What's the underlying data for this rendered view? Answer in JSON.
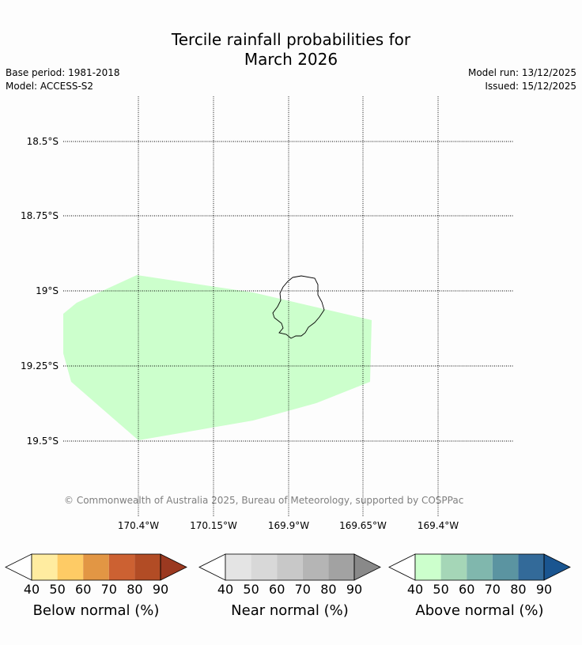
{
  "title": {
    "line1": "Tercile rainfall probabilities for",
    "line2": "March 2026"
  },
  "meta": {
    "base_period": "Base period: 1981-2018",
    "model": "Model: ACCESS-S2",
    "model_run": "Model run: 13/12/2025",
    "issued": "Issued: 15/12/2025"
  },
  "map": {
    "lat_labels": [
      "18.5°S",
      "18.75°S",
      "19°S",
      "19.25°S",
      "19.5°S"
    ],
    "lon_labels": [
      "170.4°W",
      "170.15°W",
      "169.9°W",
      "169.65°W",
      "169.4°W"
    ],
    "credit": "© Commonwealth of Australia 2025, Bureau of Meteorology, supported by COSPPac",
    "island_outline_color": "#000000",
    "shaded_region": {
      "category": "Above normal",
      "probability_band": "40-50",
      "color": "#ccffcc"
    }
  },
  "legends": [
    {
      "title": "Below normal (%)",
      "ticks": [
        "40",
        "50",
        "60",
        "70",
        "80",
        "90"
      ],
      "under_color": "#ffffff",
      "colors": [
        "#ffeca0",
        "#fecb65",
        "#e29644",
        "#cc6132",
        "#b24c25"
      ],
      "over_color": "#9b3920"
    },
    {
      "title": "Near normal (%)",
      "ticks": [
        "40",
        "50",
        "60",
        "70",
        "80",
        "90"
      ],
      "under_color": "#ffffff",
      "colors": [
        "#e4e4e4",
        "#d8d8d8",
        "#c8c8c8",
        "#b5b5b5",
        "#a2a2a2"
      ],
      "over_color": "#898989"
    },
    {
      "title": "Above normal (%)",
      "ticks": [
        "40",
        "50",
        "60",
        "70",
        "80",
        "90"
      ],
      "under_color": "#ffffff",
      "colors": [
        "#ccffcc",
        "#a5d6b7",
        "#80b7ad",
        "#5b94a1",
        "#336a99"
      ],
      "over_color": "#1a5590"
    }
  ]
}
